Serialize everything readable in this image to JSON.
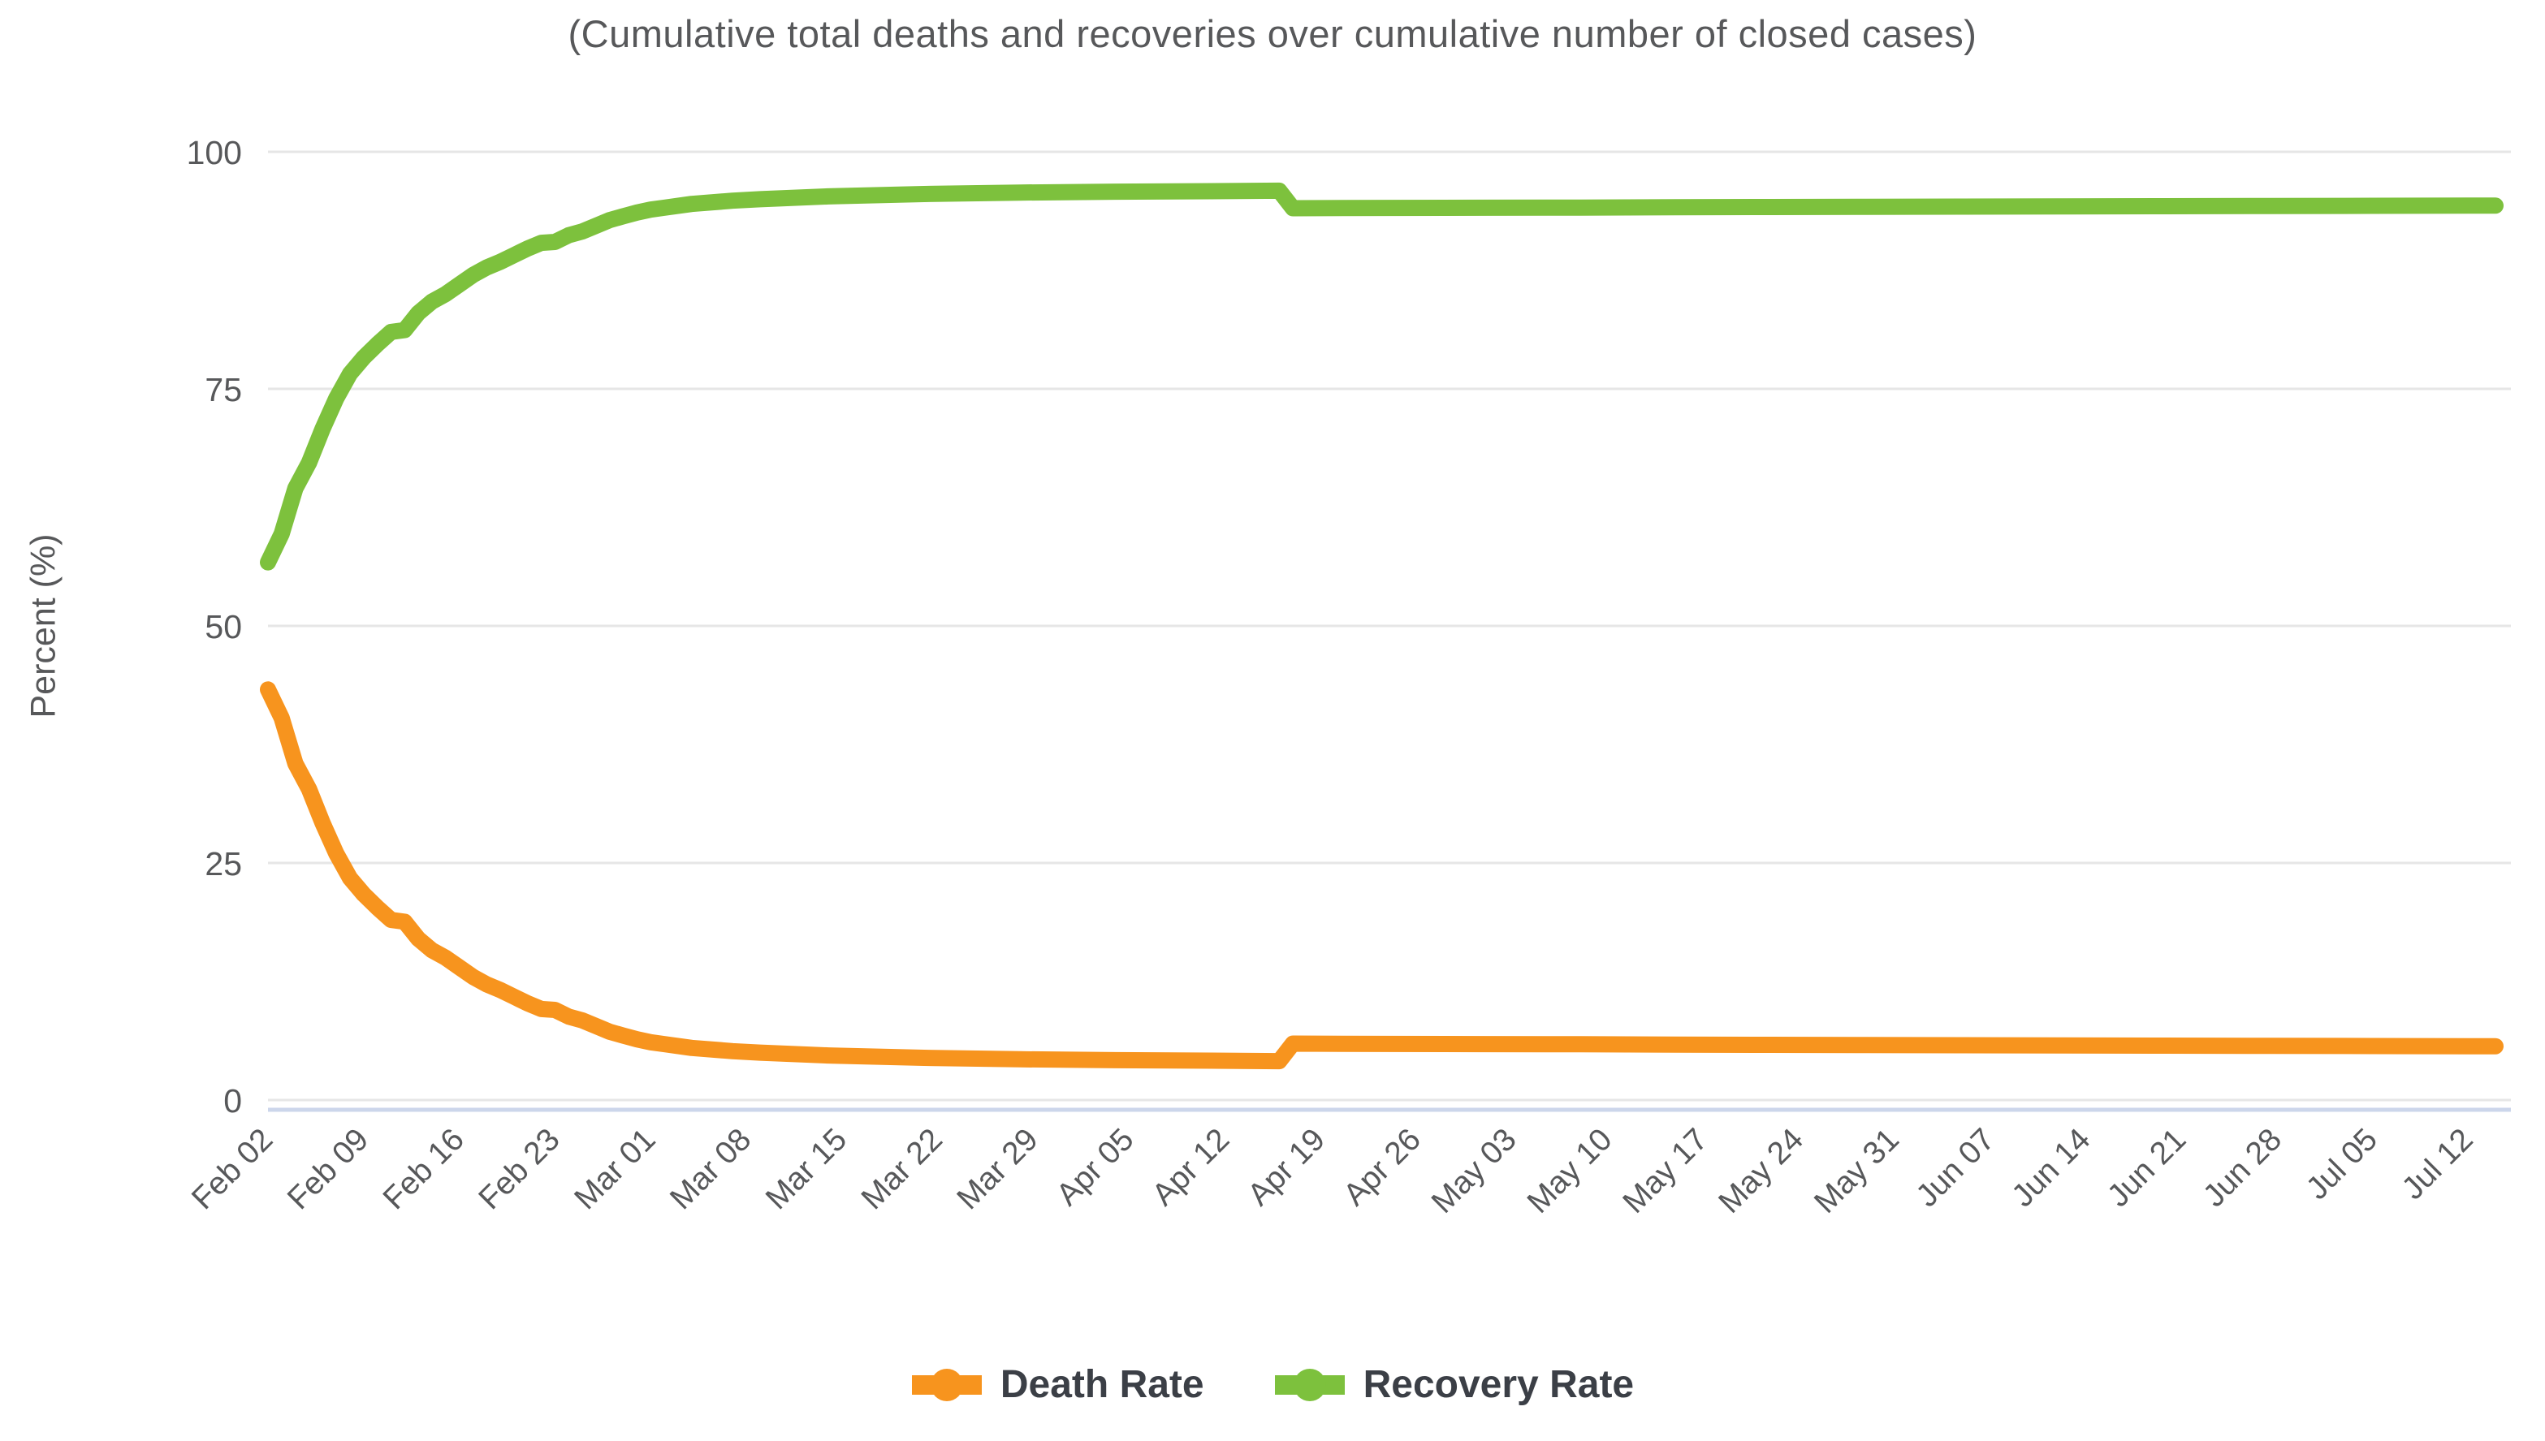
{
  "chart_data": {
    "type": "line",
    "title": "(Cumulative total deaths and recoveries over cumulative number of closed cases)",
    "xlabel": "",
    "ylabel": "Percent (%)",
    "ylim": [
      0,
      100
    ],
    "grid": "horizontal-on",
    "legend_position": "bottom",
    "background_color": "#ffffff",
    "gridline_color": "#e6e6e6",
    "axis_line_color": "#ccd6eb",
    "label_color": "#57585a",
    "legend_text_color": "#3b3f46",
    "ytick_values": [
      0,
      25,
      50,
      75,
      100
    ],
    "ytick_labels": [
      "0",
      "25",
      "50",
      "75",
      "100"
    ],
    "x_tick_labels": [
      "Feb 02",
      "Feb 09",
      "Feb 16",
      "Feb 23",
      "Mar 01",
      "Mar 08",
      "Mar 15",
      "Mar 22",
      "Mar 29",
      "Apr 05",
      "Apr 12",
      "Apr 19",
      "Apr 26",
      "May 03",
      "May 10",
      "May 17",
      "May 24",
      "May 31",
      "Jun 07",
      "Jun 14",
      "Jun 21",
      "Jun 28",
      "Jul 05",
      "Jul 12"
    ],
    "x_tick_day_offsets": [
      0,
      7,
      14,
      21,
      28,
      35,
      42,
      49,
      56,
      63,
      70,
      77,
      84,
      91,
      98,
      105,
      112,
      119,
      126,
      133,
      140,
      147,
      154,
      161
    ],
    "x_axis_rotation_deg": -45,
    "series": [
      {
        "name": "Death Rate",
        "color": "#f7941e",
        "points": [
          [
            0,
            43.3
          ],
          [
            1,
            40.3
          ],
          [
            2,
            35.5
          ],
          [
            3,
            32.8
          ],
          [
            4,
            29.2
          ],
          [
            5,
            26.0
          ],
          [
            6,
            23.4
          ],
          [
            7,
            21.7
          ],
          [
            8,
            20.3
          ],
          [
            9,
            19.0
          ],
          [
            10,
            18.8
          ],
          [
            11,
            17.0
          ],
          [
            12,
            15.8
          ],
          [
            13,
            15.0
          ],
          [
            14,
            14.0
          ],
          [
            15,
            13.0
          ],
          [
            16,
            12.2
          ],
          [
            17,
            11.6
          ],
          [
            18,
            10.9
          ],
          [
            19,
            10.2
          ],
          [
            20,
            9.6
          ],
          [
            21,
            9.5
          ],
          [
            22,
            8.8
          ],
          [
            23,
            8.4
          ],
          [
            24,
            7.8
          ],
          [
            25,
            7.2
          ],
          [
            26,
            6.8
          ],
          [
            27,
            6.4
          ],
          [
            28,
            6.1
          ],
          [
            29,
            5.9
          ],
          [
            31,
            5.5
          ],
          [
            34,
            5.15
          ],
          [
            36,
            5.0
          ],
          [
            41,
            4.7
          ],
          [
            48,
            4.45
          ],
          [
            55,
            4.3
          ],
          [
            62,
            4.2
          ],
          [
            69,
            4.15
          ],
          [
            74,
            4.1
          ],
          [
            75,
            5.95
          ],
          [
            82,
            5.92
          ],
          [
            89,
            5.9
          ],
          [
            96,
            5.88
          ],
          [
            103,
            5.85
          ],
          [
            110,
            5.82
          ],
          [
            117,
            5.8
          ],
          [
            124,
            5.78
          ],
          [
            131,
            5.76
          ],
          [
            138,
            5.74
          ],
          [
            145,
            5.72
          ],
          [
            152,
            5.7
          ],
          [
            161,
            5.68
          ],
          [
            163,
            5.68
          ]
        ]
      },
      {
        "name": "Recovery Rate",
        "color": "#7dc13d",
        "points": [
          [
            0,
            56.7
          ],
          [
            1,
            59.7
          ],
          [
            2,
            64.5
          ],
          [
            3,
            67.2
          ],
          [
            4,
            70.8
          ],
          [
            5,
            74.0
          ],
          [
            6,
            76.6
          ],
          [
            7,
            78.3
          ],
          [
            8,
            79.7
          ],
          [
            9,
            81.0
          ],
          [
            10,
            81.2
          ],
          [
            11,
            83.0
          ],
          [
            12,
            84.2
          ],
          [
            13,
            85.0
          ],
          [
            14,
            86.0
          ],
          [
            15,
            87.0
          ],
          [
            16,
            87.8
          ],
          [
            17,
            88.4
          ],
          [
            18,
            89.1
          ],
          [
            19,
            89.8
          ],
          [
            20,
            90.4
          ],
          [
            21,
            90.5
          ],
          [
            22,
            91.2
          ],
          [
            23,
            91.6
          ],
          [
            24,
            92.2
          ],
          [
            25,
            92.8
          ],
          [
            26,
            93.2
          ],
          [
            27,
            93.6
          ],
          [
            28,
            93.9
          ],
          [
            29,
            94.1
          ],
          [
            31,
            94.5
          ],
          [
            34,
            94.85
          ],
          [
            36,
            95.0
          ],
          [
            41,
            95.3
          ],
          [
            48,
            95.55
          ],
          [
            55,
            95.7
          ],
          [
            62,
            95.8
          ],
          [
            69,
            95.85
          ],
          [
            74,
            95.9
          ],
          [
            75,
            94.05
          ],
          [
            82,
            94.08
          ],
          [
            89,
            94.1
          ],
          [
            96,
            94.12
          ],
          [
            103,
            94.15
          ],
          [
            110,
            94.18
          ],
          [
            117,
            94.2
          ],
          [
            124,
            94.22
          ],
          [
            131,
            94.24
          ],
          [
            138,
            94.26
          ],
          [
            145,
            94.28
          ],
          [
            152,
            94.3
          ],
          [
            161,
            94.32
          ],
          [
            163,
            94.32
          ]
        ]
      }
    ]
  }
}
